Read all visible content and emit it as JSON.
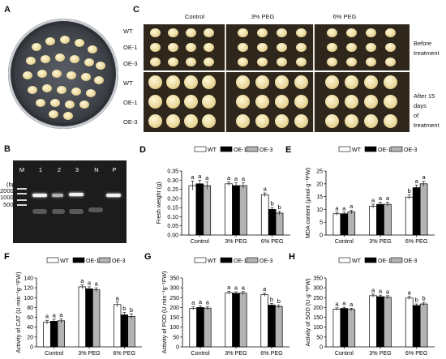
{
  "panels": {
    "A": {
      "label": "A"
    },
    "B": {
      "label": "B",
      "lanes": [
        "M",
        "1",
        "2",
        "3",
        "N",
        "P"
      ],
      "marker_unit": "(bp)",
      "marker_sizes": [
        "2000",
        "1000",
        "500"
      ]
    },
    "C": {
      "label": "C",
      "columns": [
        "Control",
        "3% PEG",
        "6% PEG"
      ],
      "rows": [
        "WT",
        "OE-1",
        "OE-3",
        "WT",
        "OE-1",
        "OE-3"
      ],
      "before": [
        "Before",
        "treatment"
      ],
      "after": [
        "After 15 days",
        "of treatment"
      ]
    }
  },
  "legend": [
    "WT",
    "OE-1",
    "OE-3"
  ],
  "colors": {
    "WT": "#ffffff",
    "OE-1": "#000000",
    "OE-3": "#b3b3b3"
  },
  "chart_data": [
    {
      "id": "D",
      "label": "D",
      "type": "bar",
      "categories": [
        "Control",
        "3% PEG",
        "6% PEG"
      ],
      "ylabel": "Fresh weight (g)",
      "ylim": [
        0,
        0.35
      ],
      "yticks": [
        "0.00",
        "0.05",
        "0.10",
        "0.15",
        "0.20",
        "0.25",
        "0.30",
        "0.35"
      ],
      "series": [
        {
          "name": "WT",
          "values": [
            0.27,
            0.28,
            0.22
          ],
          "errors": [
            0.025,
            0.01,
            0.01
          ]
        },
        {
          "name": "OE-1",
          "values": [
            0.28,
            0.27,
            0.14
          ],
          "errors": [
            0.02,
            0.015,
            0.01
          ]
        },
        {
          "name": "OE-3",
          "values": [
            0.27,
            0.27,
            0.12
          ],
          "errors": [
            0.02,
            0.015,
            0.01
          ]
        }
      ],
      "sig": [
        [
          "a",
          "a",
          "a"
        ],
        [
          "a",
          "a",
          "a"
        ],
        [
          "a",
          "b",
          "b"
        ]
      ]
    },
    {
      "id": "E",
      "label": "E",
      "type": "bar",
      "categories": [
        "Control",
        "3% PEG",
        "6% PEG"
      ],
      "ylabel": "MDA content (μmol·g⁻¹FW)",
      "ylim": [
        0,
        25
      ],
      "yticks": [
        "0",
        "5",
        "10",
        "15",
        "20",
        "25"
      ],
      "series": [
        {
          "name": "WT",
          "values": [
            8.3,
            11.2,
            14.8
          ],
          "errors": [
            0.6,
            0.8,
            0.8
          ]
        },
        {
          "name": "OE-1",
          "values": [
            8.3,
            12.0,
            18.5
          ],
          "errors": [
            0.6,
            0.8,
            1.0
          ]
        },
        {
          "name": "OE-3",
          "values": [
            9.0,
            12.0,
            20.0
          ],
          "errors": [
            0.7,
            0.8,
            1.0
          ]
        }
      ],
      "sig": [
        [
          "a",
          "a",
          "a"
        ],
        [
          "a",
          "a",
          "a"
        ],
        [
          "b",
          "a",
          "a"
        ]
      ]
    },
    {
      "id": "F",
      "label": "F",
      "type": "bar",
      "categories": [
        "Control",
        "3% PEG",
        "6% PEG"
      ],
      "ylabel": "Activity of CAT (U·min⁻¹g⁻¹FW)",
      "ylim": [
        0,
        140
      ],
      "yticks": [
        "0",
        "20",
        "40",
        "60",
        "80",
        "100",
        "120",
        "140"
      ],
      "series": [
        {
          "name": "WT",
          "values": [
            50,
            122,
            86
          ],
          "errors": [
            4,
            4,
            5
          ]
        },
        {
          "name": "OE-1",
          "values": [
            52,
            118,
            65
          ],
          "errors": [
            4,
            4,
            5
          ]
        },
        {
          "name": "OE-3",
          "values": [
            53,
            116,
            62
          ],
          "errors": [
            4,
            4,
            5
          ]
        }
      ],
      "sig": [
        [
          "a",
          "a",
          "a"
        ],
        [
          "a",
          "a",
          "a"
        ],
        [
          "a",
          "b",
          "b"
        ]
      ]
    },
    {
      "id": "G",
      "label": "G",
      "type": "bar",
      "categories": [
        "Control",
        "3% PEG",
        "6% PEG"
      ],
      "ylabel": "Activity of POD (U·min⁻¹g⁻¹FW)",
      "ylim": [
        0,
        350
      ],
      "yticks": [
        "0",
        "50",
        "100",
        "150",
        "200",
        "250",
        "300",
        "350"
      ],
      "series": [
        {
          "name": "WT",
          "values": [
            195,
            275,
            265
          ],
          "errors": [
            8,
            8,
            8
          ]
        },
        {
          "name": "OE-1",
          "values": [
            200,
            272,
            212
          ],
          "errors": [
            8,
            8,
            8
          ]
        },
        {
          "name": "OE-3",
          "values": [
            197,
            273,
            205
          ],
          "errors": [
            8,
            8,
            8
          ]
        }
      ],
      "sig": [
        [
          "a",
          "a",
          "a"
        ],
        [
          "a",
          "a",
          "a"
        ],
        [
          "a",
          "b",
          "b"
        ]
      ]
    },
    {
      "id": "H",
      "label": "H",
      "type": "bar",
      "categories": [
        "Control",
        "3% PEG",
        "6% PEG"
      ],
      "ylabel": "Activity of SOD (U·g⁻¹FW)",
      "ylim": [
        0,
        350
      ],
      "yticks": [
        "0",
        "50",
        "100",
        "150",
        "200",
        "250",
        "300",
        "350"
      ],
      "series": [
        {
          "name": "WT",
          "values": [
            192,
            260,
            248
          ],
          "errors": [
            6,
            8,
            8
          ]
        },
        {
          "name": "OE-1",
          "values": [
            195,
            255,
            210
          ],
          "errors": [
            6,
            8,
            8
          ]
        },
        {
          "name": "OE-3",
          "values": [
            190,
            252,
            218
          ],
          "errors": [
            6,
            8,
            8
          ]
        }
      ],
      "sig": [
        [
          "a",
          "a",
          "a"
        ],
        [
          "a",
          "a",
          "a"
        ],
        [
          "a",
          "b",
          "b"
        ]
      ]
    }
  ]
}
